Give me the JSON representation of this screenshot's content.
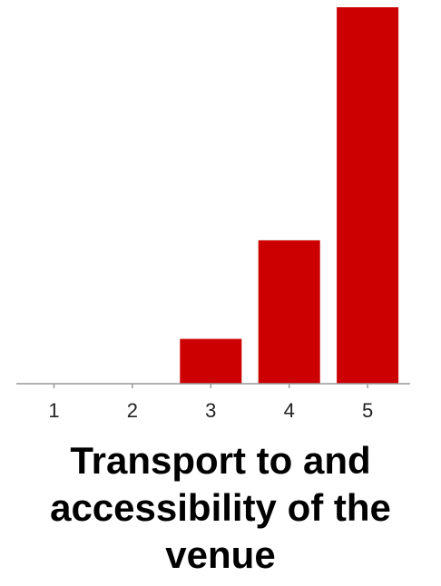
{
  "chart_data": {
    "type": "bar",
    "title": "Transport to and accessibility of the venue",
    "xlabel": "",
    "ylabel": "",
    "categories": [
      "1",
      "2",
      "3",
      "4",
      "5"
    ],
    "values": [
      0,
      0,
      5,
      16,
      42
    ],
    "ylim": [
      0,
      42
    ],
    "grid": false,
    "legend": "none",
    "colors": {
      "bar": "#cc0000",
      "axis": "#999999",
      "tick_text": "#222222"
    }
  }
}
